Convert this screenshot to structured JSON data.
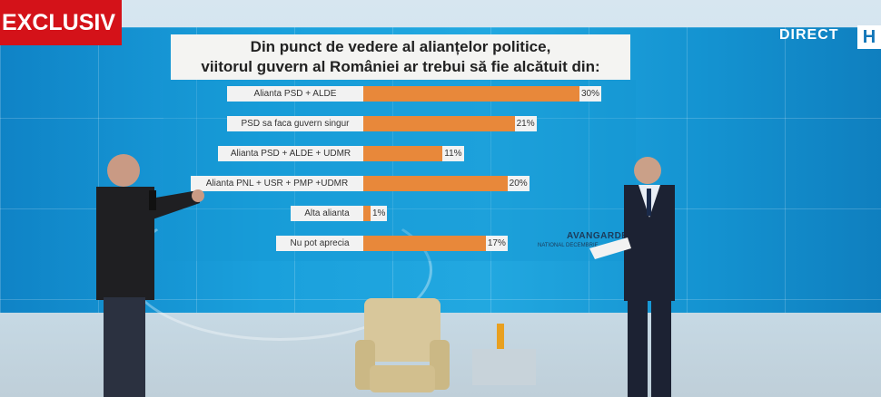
{
  "badge": {
    "text": "EXCLUSIV"
  },
  "broadcast": {
    "direct": "DIRECT",
    "hd": "H"
  },
  "source": {
    "name": "AVANGARDE",
    "sub": "NATIONAL DECEMBRIE"
  },
  "chart_data": {
    "type": "bar",
    "orientation": "horizontal",
    "title": "Din punct de vedere al alianțelor politice, viitorul guvern al României ar trebui să fie alcătuit din:",
    "title_line1": "Din punct de vedere al alianțelor politice,",
    "title_line2": "viitorul guvern al României ar trebui să fie alcătuit din:",
    "categories": [
      "Alianta PSD + ALDE",
      "PSD sa faca guvern singur",
      "Alianta PSD + ALDE + UDMR",
      "Alianta PNL + USR + PMP +UDMR",
      "Alta alianta",
      "Nu pot aprecia"
    ],
    "values": [
      30,
      21,
      11,
      20,
      1,
      17
    ],
    "value_labels": [
      "30%",
      "21%",
      "11%",
      "20%",
      "1%",
      "17%"
    ],
    "unit": "%",
    "bar_color": "#e8883a",
    "xlim": [
      0,
      30
    ],
    "grid": false,
    "legend": "none"
  }
}
